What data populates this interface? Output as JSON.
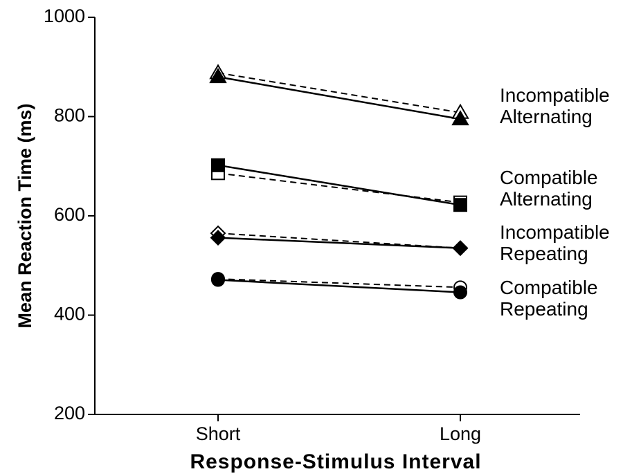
{
  "chart_data": {
    "type": "line",
    "title": "",
    "xlabel": "Response-Stimulus Interval",
    "ylabel": "Mean Reaction Time (ms)",
    "categories": [
      "Short",
      "Long"
    ],
    "ylim": [
      200,
      1000
    ],
    "yticks": [
      "200",
      "400",
      "600",
      "800",
      "1000"
    ],
    "grid": false,
    "legend": "none",
    "series": [
      {
        "marker": "triangle",
        "fill": "filled",
        "line": "solid",
        "values": [
          880,
          795
        ]
      },
      {
        "marker": "triangle",
        "fill": "open",
        "line": "dashed",
        "values": [
          888,
          808
        ]
      },
      {
        "marker": "square",
        "fill": "filled",
        "line": "solid",
        "values": [
          702,
          622
        ]
      },
      {
        "marker": "square",
        "fill": "open",
        "line": "dashed",
        "values": [
          686,
          627
        ]
      },
      {
        "marker": "diamond",
        "fill": "filled",
        "line": "solid",
        "values": [
          556,
          535
        ]
      },
      {
        "marker": "diamond",
        "fill": "open",
        "line": "dashed",
        "values": [
          565,
          535
        ]
      },
      {
        "marker": "circle",
        "fill": "filled",
        "line": "solid",
        "values": [
          471,
          446
        ]
      },
      {
        "marker": "circle",
        "fill": "open",
        "line": "dashed",
        "values": [
          473,
          456
        ]
      }
    ],
    "annotations": [
      {
        "line1": "Incompatible",
        "line2": "Alternating"
      },
      {
        "line1": "Compatible",
        "line2": "Alternating"
      },
      {
        "line1": "Incompatible",
        "line2": "Repeating"
      },
      {
        "line1": "Compatible",
        "line2": "Repeating"
      }
    ]
  }
}
